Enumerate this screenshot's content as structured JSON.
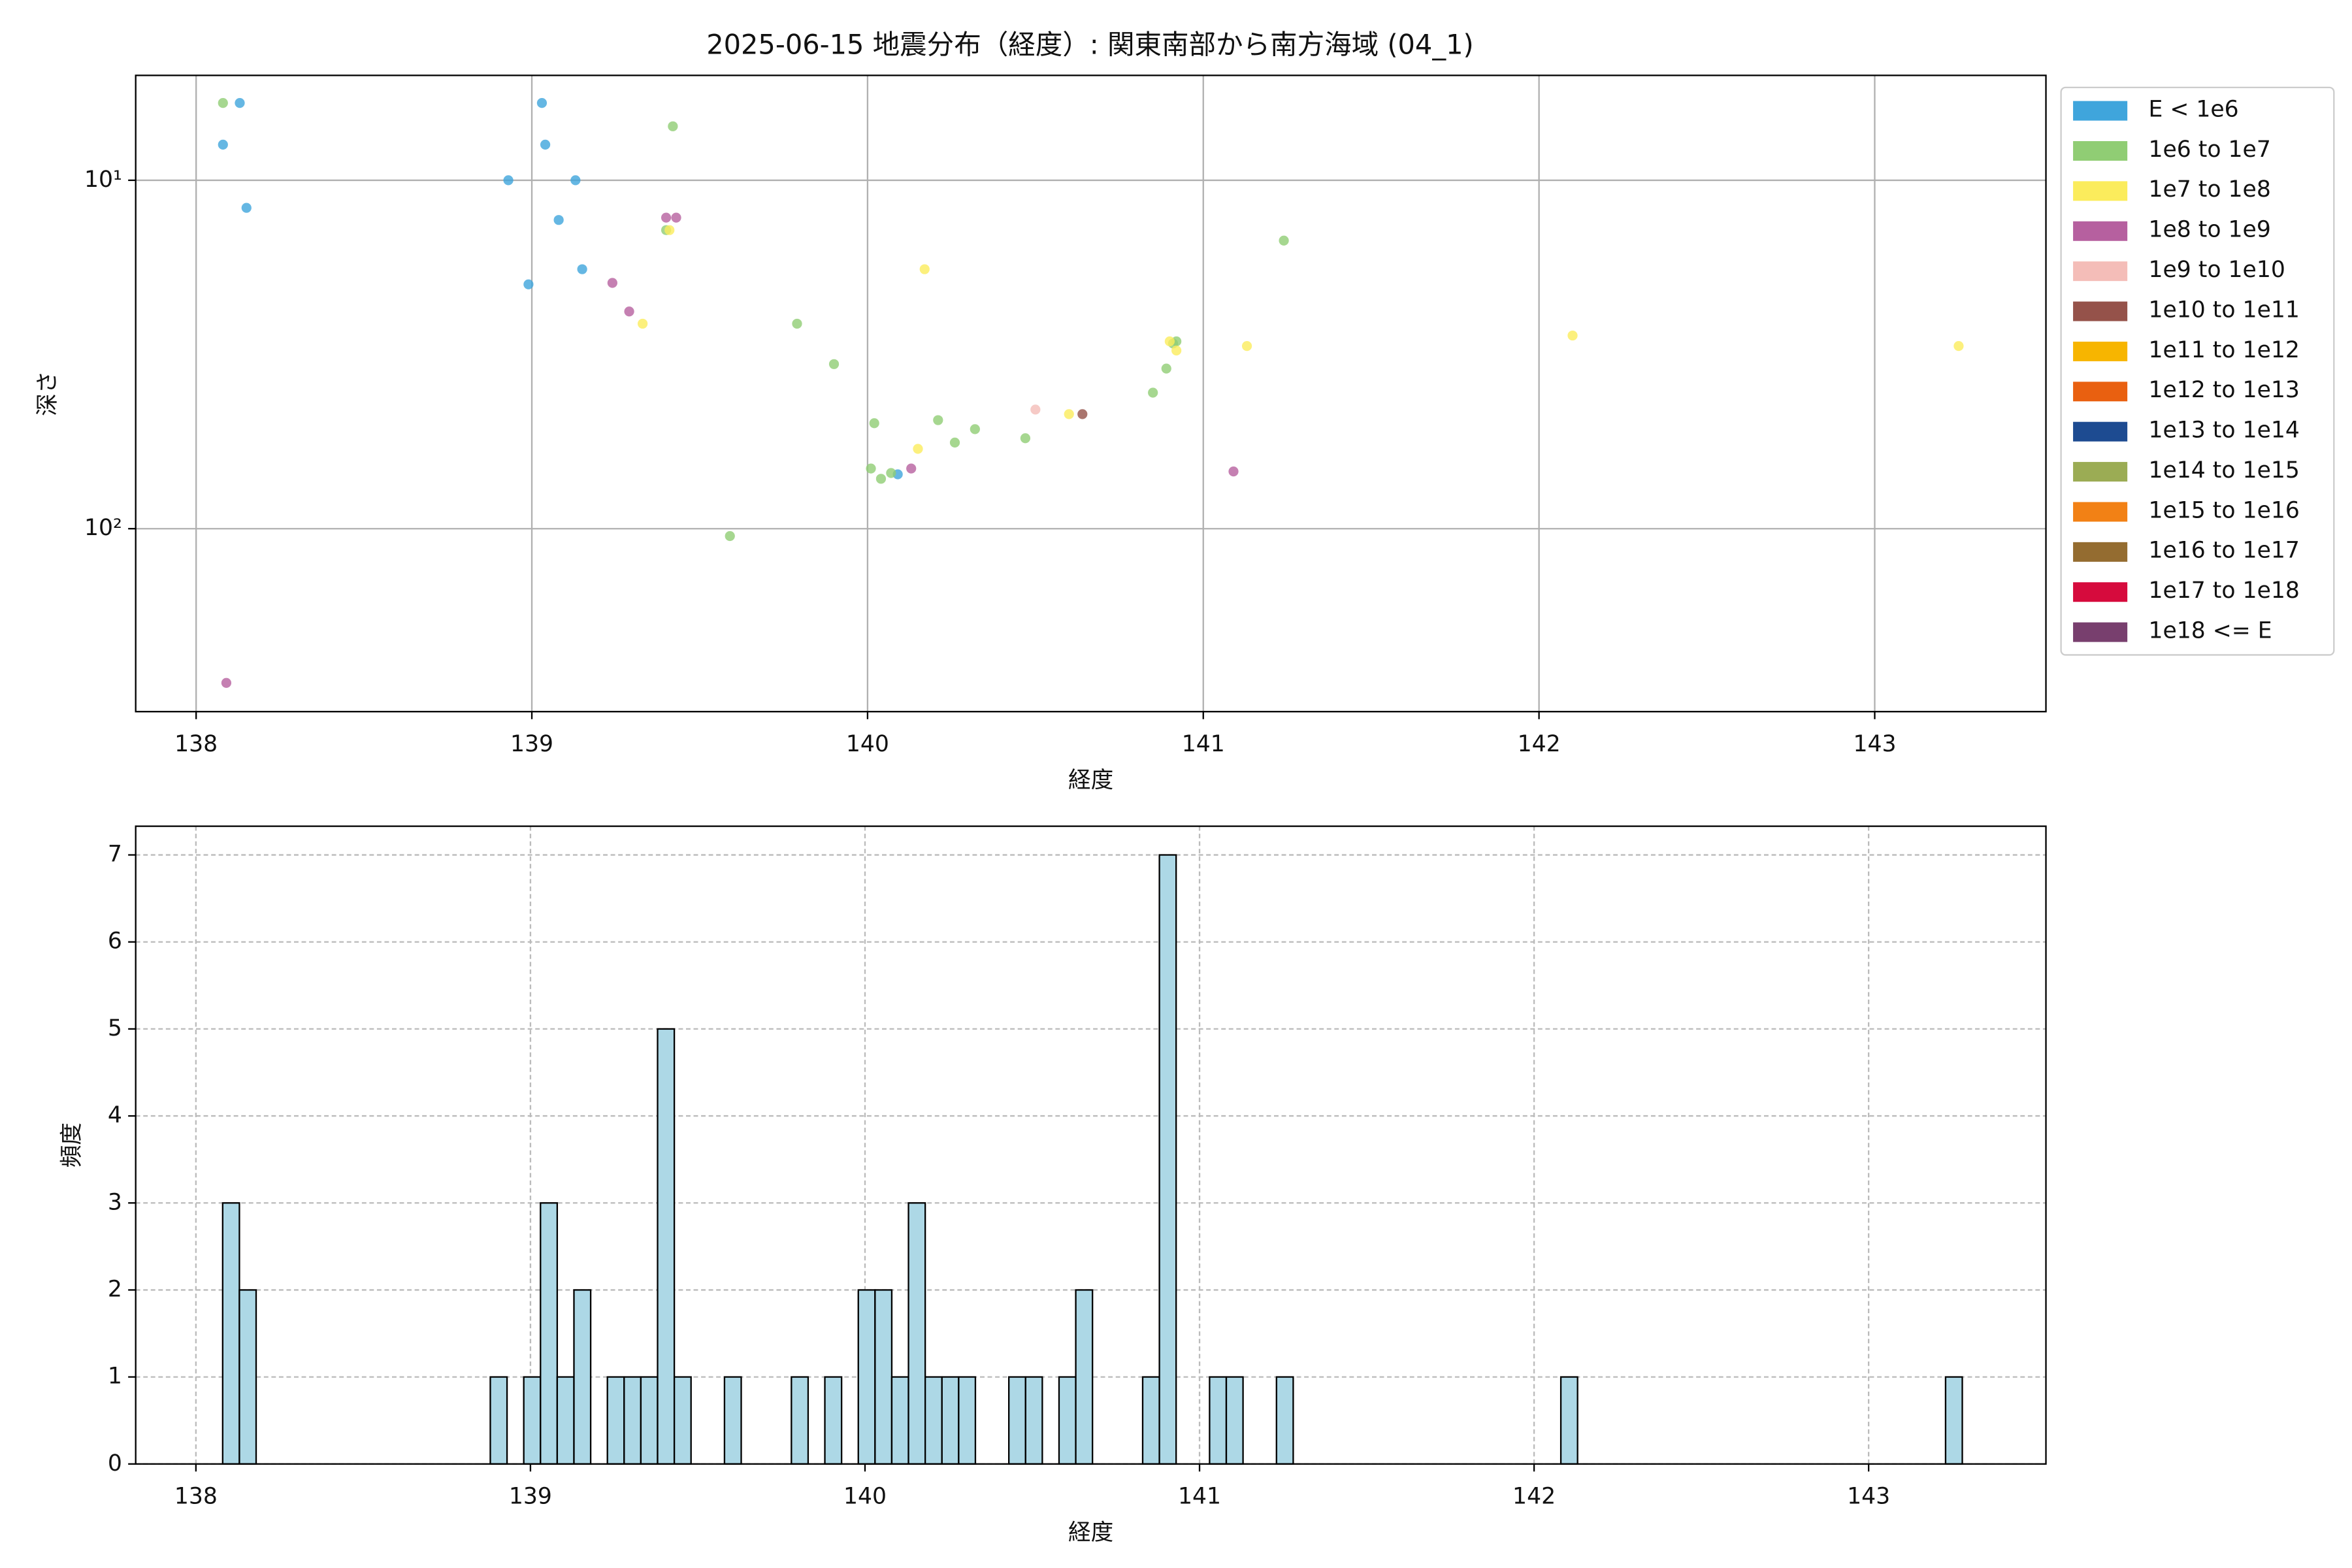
{
  "chart_data": [
    {
      "type": "scatter",
      "title": "2025-06-15 地震分布（経度）: 関東南部から南方海域 (04_1)",
      "x_label": "経度",
      "y_label": "深さ",
      "xlim": [
        137.82,
        143.51
      ],
      "xticks": [
        138,
        139,
        140,
        141,
        142,
        143
      ],
      "ylim": [
        5,
        335
      ],
      "y_scale": "log",
      "y_inverted": true,
      "yticks": [
        {
          "value": 10,
          "label": "10¹"
        },
        {
          "value": 100,
          "label": "10²"
        }
      ],
      "grid": true,
      "legend": "outside right",
      "series": [
        {
          "name": "E < 1e6",
          "color": "#3fa5dc",
          "x": [
            138.08,
            138.13,
            138.15,
            138.93,
            139.03,
            139.04,
            138.99,
            139.08,
            139.13,
            139.15,
            140.09
          ],
          "values": [
            7.9,
            6.0,
            12.0,
            10.0,
            6.0,
            7.9,
            19.9,
            13.0,
            10.0,
            18.0,
            69.8
          ]
        },
        {
          "name": "1e6 to 1e7",
          "color": "#90cd74",
          "x": [
            138.08,
            139.42,
            139.4,
            139.79,
            139.9,
            139.59,
            140.02,
            140.01,
            140.04,
            140.07,
            140.21,
            140.26,
            140.32,
            140.47,
            140.85,
            140.89,
            140.91,
            140.92,
            141.24
          ],
          "values": [
            6.0,
            7.0,
            13.9,
            25.8,
            33.7,
            105,
            49.8,
            67.2,
            71.9,
            69.2,
            48.8,
            56.6,
            51.8,
            55.0,
            40.7,
            34.7,
            29.4,
            29.0,
            14.9
          ]
        },
        {
          "name": "1e7 to 1e8",
          "color": "#fbec5c",
          "x": [
            139.41,
            139.33,
            140.17,
            140.15,
            140.6,
            140.9,
            140.92,
            141.13,
            142.1,
            143.25
          ],
          "values": [
            13.9,
            25.8,
            18.0,
            59.0,
            46.9,
            29.0,
            30.8,
            29.9,
            27.9,
            29.9
          ]
        },
        {
          "name": "1e8 to 1e9",
          "color": "#b6609f",
          "x": [
            139.4,
            139.43,
            139.24,
            139.29,
            140.13,
            141.09,
            138.09
          ],
          "values": [
            12.8,
            12.8,
            19.7,
            23.8,
            67.2,
            68.5,
            277
          ]
        },
        {
          "name": "1e9 to 1e10",
          "color": "#f4bdb8",
          "x": [
            140.5
          ],
          "values": [
            45.5
          ]
        },
        {
          "name": "1e10 to 1e11",
          "color": "#95524a",
          "x": [
            140.64
          ],
          "values": [
            46.9
          ]
        },
        {
          "name": "1e11 to 1e12",
          "color": "#f7b500",
          "x": [],
          "values": []
        },
        {
          "name": "1e12 to 1e13",
          "color": "#e96010",
          "x": [],
          "values": []
        },
        {
          "name": "1e13 to 1e14",
          "color": "#1d4b91",
          "x": [],
          "values": []
        },
        {
          "name": "1e14 to 1e15",
          "color": "#9bac54",
          "x": [],
          "values": []
        },
        {
          "name": "1e15 to 1e16",
          "color": "#f28115",
          "x": [],
          "values": []
        },
        {
          "name": "1e16 to 1e17",
          "color": "#946c30",
          "x": [],
          "values": []
        },
        {
          "name": "1e17 to 1e18",
          "color": "#d60b3d",
          "x": [],
          "values": []
        },
        {
          "name": "1e18 <= E",
          "color": "#783f6e",
          "x": [],
          "values": []
        }
      ]
    },
    {
      "type": "histogram",
      "x_label": "経度",
      "y_label": "頻度",
      "xlim": [
        137.82,
        143.53
      ],
      "xticks": [
        138,
        139,
        140,
        141,
        142,
        143
      ],
      "ylim": [
        0,
        7.33
      ],
      "yticks": [
        0,
        1,
        2,
        3,
        4,
        5,
        6,
        7
      ],
      "grid": true,
      "color": "#add8e6",
      "edgecolor": "#000000",
      "bins": [
        138.08,
        138.13,
        138.18,
        138.23,
        138.28,
        138.33,
        138.38,
        138.43,
        138.48,
        138.53,
        138.58,
        138.63,
        138.68,
        138.73,
        138.78,
        138.83,
        138.88,
        138.93,
        138.98,
        139.03,
        139.08,
        139.13,
        139.18,
        139.23,
        139.28,
        139.33,
        139.38,
        139.43,
        139.48,
        139.53,
        139.58,
        139.63,
        139.68,
        139.73,
        139.78,
        139.83,
        139.88,
        139.93,
        139.98,
        140.03,
        140.08,
        140.13,
        140.18,
        140.23,
        140.28,
        140.33,
        140.38,
        140.43,
        140.48,
        140.53,
        140.58,
        140.63,
        140.68,
        140.73,
        140.78,
        140.83,
        140.88,
        140.93,
        140.98,
        141.03,
        141.08,
        141.13,
        141.18,
        141.23,
        141.28,
        141.33,
        141.38,
        141.43,
        141.48,
        141.53,
        141.58,
        141.63,
        141.68,
        141.73,
        141.78,
        141.83,
        141.88,
        141.93,
        141.98,
        142.03,
        142.08,
        142.13,
        142.18,
        142.23,
        142.28,
        142.33,
        142.38,
        142.43,
        142.48,
        142.53,
        142.58,
        142.63,
        142.68,
        142.73,
        142.78,
        142.83,
        142.88,
        142.93,
        142.98,
        143.03,
        143.08,
        143.13,
        143.18,
        143.23,
        143.28
      ],
      "values": [
        3,
        2,
        0,
        0,
        0,
        0,
        0,
        0,
        0,
        0,
        0,
        0,
        0,
        0,
        0,
        0,
        1,
        0,
        1,
        3,
        1,
        2,
        0,
        1,
        1,
        1,
        5,
        1,
        0,
        0,
        1,
        0,
        0,
        0,
        1,
        0,
        1,
        0,
        2,
        2,
        1,
        3,
        1,
        1,
        1,
        0,
        0,
        1,
        1,
        0,
        1,
        2,
        0,
        0,
        0,
        1,
        7,
        0,
        0,
        1,
        1,
        0,
        0,
        1,
        0,
        0,
        0,
        0,
        0,
        0,
        0,
        0,
        0,
        0,
        0,
        0,
        0,
        0,
        0,
        0,
        1,
        0,
        0,
        0,
        0,
        0,
        0,
        0,
        0,
        0,
        0,
        0,
        0,
        0,
        0,
        0,
        0,
        0,
        0,
        0,
        0,
        0,
        0,
        1
      ]
    }
  ]
}
